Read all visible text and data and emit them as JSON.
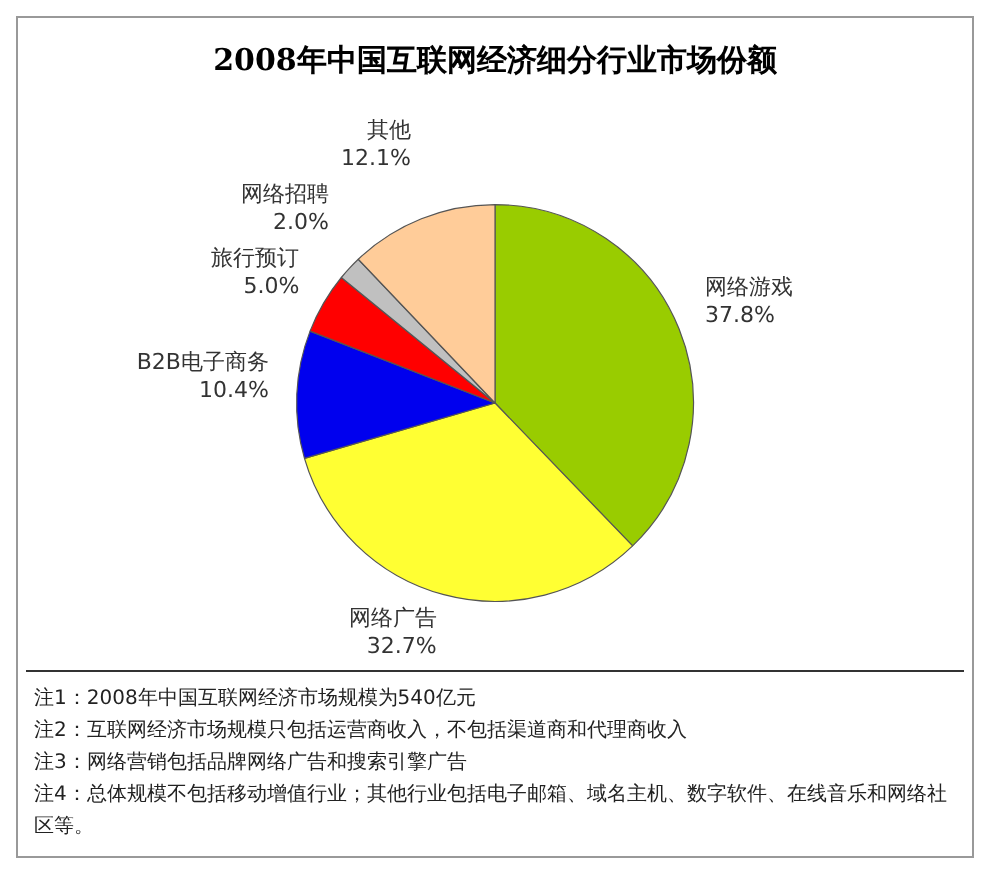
{
  "chart_data": {
    "type": "pie",
    "title": "2008年中国互联网经济细分行业市场份额",
    "categories": [
      "网络游戏",
      "网络广告",
      "B2B电子商务",
      "旅行预订",
      "网络招聘",
      "其他"
    ],
    "values": [
      37.8,
      32.7,
      10.4,
      5.0,
      2.0,
      12.1
    ],
    "value_labels": [
      "37.8%",
      "32.7%",
      "10.4%",
      "5.0%",
      "2.0%",
      "12.1%"
    ],
    "colors": [
      "#99cc00",
      "#ffff33",
      "#0000ee",
      "#ff0000",
      "#c0c0c0",
      "#ffcc99"
    ],
    "legend": false,
    "annotations": [
      "注1：2008年中国互联网经济市场规模为540亿元",
      "注2：互联网经济市场规模只包括运营商收入，不包括渠道商和代理商收入",
      "注3：网络营销包括品牌网络广告和搜索引擎广告",
      "注4：总体规模不包括移动增值行业；其他行业包括电子邮箱、域名主机、数字软件、在线音乐和网络社区等。"
    ]
  }
}
